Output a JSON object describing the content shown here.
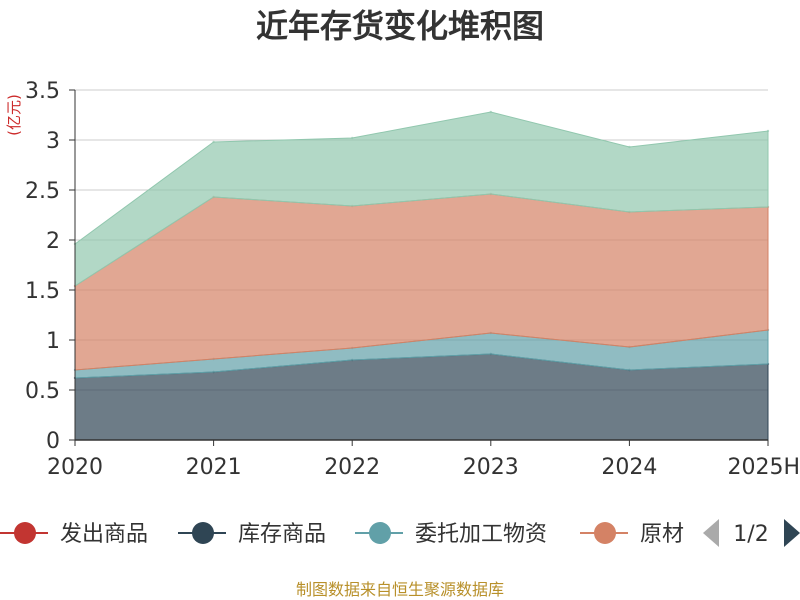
{
  "chart_data": {
    "type": "area",
    "stacked": true,
    "title": "近年存货变化堆积图",
    "ylabel": "(亿元)",
    "xlabel": "",
    "categories": [
      "2020",
      "2021",
      "2022",
      "2023",
      "2024",
      "2025H"
    ],
    "ylim": [
      0,
      3.5
    ],
    "yticks": [
      "0",
      "0.5",
      "1",
      "1.5",
      "2",
      "2.5",
      "3",
      "3.5"
    ],
    "grid": true,
    "series": [
      {
        "name": "发出商品",
        "color": "#c23531",
        "values": [
          0,
          0,
          0,
          0,
          0,
          0
        ]
      },
      {
        "name": "库存商品",
        "color": "#2f4554",
        "values": [
          0.62,
          0.68,
          0.8,
          0.86,
          0.7,
          0.76
        ]
      },
      {
        "name": "委托加工物资",
        "color": "#61a0a8",
        "values": [
          0.08,
          0.13,
          0.12,
          0.21,
          0.23,
          0.34
        ]
      },
      {
        "name": "原材料",
        "color": "#d48265",
        "values": [
          0.84,
          1.62,
          1.42,
          1.39,
          1.35,
          1.23
        ]
      },
      {
        "name": "",
        "color": "#91c7ae",
        "values": [
          0.42,
          0.55,
          0.68,
          0.82,
          0.65,
          0.76
        ]
      }
    ],
    "legend": {
      "placement": "bottom",
      "visible_items": [
        "发出商品",
        "库存商品",
        "委托加工物资",
        "原材料"
      ],
      "page": "1/2"
    }
  },
  "source_text": "制图数据来自恒生聚源数据库"
}
